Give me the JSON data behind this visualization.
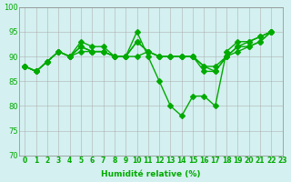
{
  "lines": [
    [
      88,
      87,
      89,
      91,
      90,
      93,
      92,
      92,
      90,
      90,
      95,
      90,
      85,
      80,
      78,
      82,
      82,
      80,
      91,
      93,
      93,
      94,
      95
    ],
    [
      88,
      87,
      89,
      91,
      90,
      92,
      91,
      91,
      90,
      90,
      93,
      91,
      90,
      90,
      90,
      90,
      88,
      88,
      90,
      92,
      93,
      94,
      95
    ],
    [
      88,
      87,
      89,
      91,
      90,
      92,
      91,
      91,
      90,
      90,
      93,
      91,
      90,
      90,
      90,
      90,
      87,
      87,
      90,
      92,
      92,
      93,
      95
    ],
    [
      88,
      87,
      89,
      91,
      90,
      91,
      91,
      91,
      90,
      90,
      90,
      91,
      90,
      90,
      90,
      90,
      88,
      87,
      90,
      91,
      92,
      93,
      95
    ]
  ],
  "x": [
    0,
    1,
    2,
    3,
    4,
    5,
    6,
    7,
    8,
    9,
    10,
    11,
    12,
    13,
    14,
    15,
    16,
    17,
    18,
    19,
    20,
    21,
    22
  ],
  "xlabels": [
    "0",
    "1",
    "2",
    "3",
    "4",
    "5",
    "6",
    "7",
    "8",
    "9",
    "10",
    "11",
    "12",
    "13",
    "14",
    "15",
    "16",
    "17",
    "18",
    "19",
    "20",
    "21",
    "22",
    "23"
  ],
  "ylabel": "Humidité relative (%)",
  "ylim": [
    70,
    100
  ],
  "yticks": [
    70,
    75,
    80,
    85,
    90,
    95,
    100
  ],
  "line_color": "#00aa00",
  "marker": "D",
  "background_color": "#d4f0f0",
  "grid_color": "#aaaaaa"
}
